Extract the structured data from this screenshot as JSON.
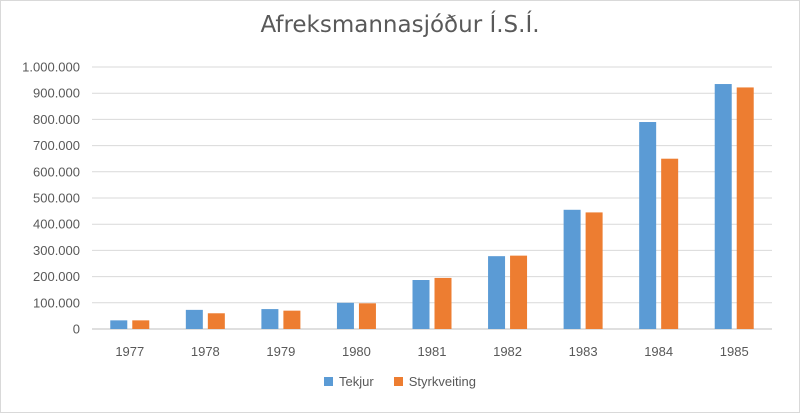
{
  "chart_data": {
    "type": "bar",
    "title": "Afreksmannasjóður Í.S.Í.",
    "xlabel": "",
    "ylabel": "",
    "categories": [
      "1977",
      "1978",
      "1979",
      "1980",
      "1981",
      "1982",
      "1983",
      "1984",
      "1985"
    ],
    "series": [
      {
        "name": "Tekjur",
        "color": "#5b9bd5",
        "values": [
          33000,
          73000,
          76000,
          100000,
          187000,
          278000,
          455000,
          790000,
          935000
        ]
      },
      {
        "name": "Styrkveiting",
        "color": "#ed7d31",
        "values": [
          33000,
          60000,
          70000,
          98000,
          195000,
          280000,
          445000,
          650000,
          922000
        ]
      }
    ],
    "ylim": [
      0,
      1000000
    ],
    "yticks": [
      "0",
      "100.000",
      "200.000",
      "300.000",
      "400.000",
      "500.000",
      "600.000",
      "700.000",
      "800.000",
      "900.000",
      "1.000.000"
    ],
    "grid": true,
    "legend_position": "bottom"
  }
}
